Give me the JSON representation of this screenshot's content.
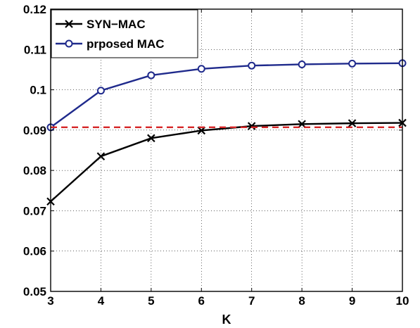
{
  "chart_data": {
    "type": "line",
    "title": "",
    "xlabel": "K",
    "ylabel": "",
    "x": [
      3,
      4,
      5,
      6,
      7,
      8,
      9,
      10
    ],
    "xlim": [
      3,
      10
    ],
    "ylim": [
      0.05,
      0.12
    ],
    "xticks": [
      "3",
      "4",
      "5",
      "6",
      "7",
      "8",
      "9",
      "10"
    ],
    "yticks": [
      "0.05",
      "0.06",
      "0.07",
      "0.08",
      "0.09",
      "0.1",
      "0.11",
      "0.12"
    ],
    "grid": true,
    "legend_position": "top-left",
    "series": [
      {
        "name": "SYN−MAC",
        "values": [
          0.0723,
          0.0835,
          0.088,
          0.0899,
          0.091,
          0.0915,
          0.0917,
          0.0918
        ],
        "color": "#000000",
        "marker": "x",
        "linestyle": "solid"
      },
      {
        "name": "prposed MAC",
        "values": [
          0.0907,
          0.0998,
          0.1036,
          0.1052,
          0.106,
          0.1063,
          0.1065,
          0.1066
        ],
        "color": "#1f2a8c",
        "marker": "o",
        "linestyle": "solid"
      },
      {
        "name": "",
        "values": [
          0.0907,
          0.0907,
          0.0907,
          0.0907,
          0.0907,
          0.0907,
          0.0907,
          0.0907
        ],
        "color": "#d62728",
        "marker": "none",
        "linestyle": "dashed"
      }
    ]
  }
}
